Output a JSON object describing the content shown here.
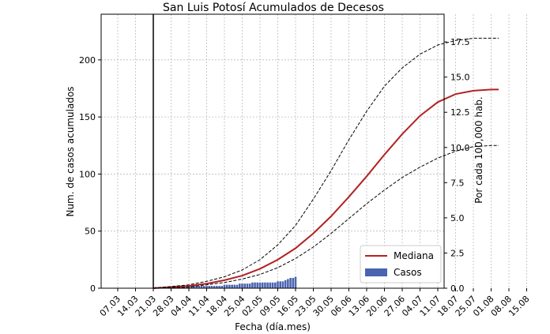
{
  "chart_data": {
    "type": "line",
    "title": "San Luis Potosí Acumulados de Decesos",
    "xlabel": "Fecha (día.mes)",
    "ylabel": "Num. de casos acumulados",
    "y2label": "Por cada 100,000 hab.",
    "ylim": [
      0,
      240
    ],
    "y_ticks": [
      0,
      50,
      100,
      150,
      200
    ],
    "y2lim": [
      0,
      19.47
    ],
    "y2_ticks": [
      "0.0",
      "2.5",
      "5.0",
      "7.5",
      "10.0",
      "12.5",
      "15.0",
      "17.5"
    ],
    "x_tick_labels": [
      "07.03",
      "14.03",
      "21.03",
      "28.03",
      "04.04",
      "11.04",
      "18.04",
      "25.04",
      "02.05",
      "09.05",
      "16.05",
      "23.05",
      "30.05",
      "06.06",
      "13.06",
      "20.06",
      "27.06",
      "04.07",
      "11.07",
      "18.07",
      "25.07",
      "01.08",
      "08.08",
      "15.08"
    ],
    "x_unit": "days since 07.03",
    "vline_day": 14,
    "grid": true,
    "legend_position": "lower-right",
    "series": [
      {
        "name": "Mediana",
        "kind": "line",
        "color": "#b22222",
        "x": [
          14,
          28,
          35,
          42,
          49,
          56,
          63,
          70,
          77,
          84,
          91,
          98,
          105,
          112,
          119,
          126,
          133,
          140,
          147,
          150
        ],
        "y": [
          0,
          2,
          4,
          7,
          11,
          17,
          25,
          35,
          48,
          63,
          80,
          98,
          117,
          135,
          151,
          163,
          170,
          173,
          174,
          174
        ]
      },
      {
        "name": "Upper bound",
        "kind": "dashed",
        "color": "#000000",
        "x": [
          14,
          28,
          35,
          42,
          49,
          56,
          63,
          70,
          77,
          84,
          91,
          98,
          105,
          112,
          119,
          126,
          133,
          140,
          147,
          150
        ],
        "y": [
          0,
          3,
          6,
          10,
          16,
          25,
          38,
          55,
          78,
          103,
          130,
          155,
          177,
          193,
          205,
          213,
          217,
          219,
          219,
          219
        ]
      },
      {
        "name": "Lower bound",
        "kind": "dashed",
        "color": "#000000",
        "x": [
          14,
          28,
          35,
          42,
          49,
          56,
          63,
          70,
          77,
          84,
          91,
          98,
          105,
          112,
          119,
          126,
          133,
          140,
          147,
          150
        ],
        "y": [
          0,
          1,
          3,
          5,
          8,
          12,
          18,
          26,
          36,
          48,
          61,
          74,
          86,
          97,
          106,
          114,
          120,
          124,
          125,
          125
        ]
      },
      {
        "name": "Casos",
        "kind": "bar",
        "color": "#4a64b0",
        "x": [
          15,
          16,
          17,
          18,
          19,
          20,
          21,
          22,
          23,
          24,
          25,
          26,
          27,
          28,
          29,
          30,
          31,
          32,
          33,
          34,
          35,
          36,
          37,
          38,
          39,
          40,
          41,
          42,
          43,
          44,
          45,
          46,
          47,
          48,
          49,
          50,
          51,
          52,
          53,
          54,
          55,
          56,
          57,
          58,
          59,
          60,
          61,
          62,
          63,
          64,
          65,
          66,
          67,
          68,
          69,
          70
        ],
        "y": [
          1,
          1,
          1,
          1,
          1,
          1,
          1,
          2,
          2,
          2,
          2,
          2,
          2,
          2,
          2,
          2,
          2,
          2,
          2,
          2,
          2,
          2,
          2,
          2,
          2,
          2,
          2,
          3,
          3,
          3,
          3,
          3,
          3,
          4,
          4,
          4,
          4,
          4,
          5,
          5,
          5,
          5,
          5,
          5,
          5,
          5,
          5,
          5,
          6,
          6,
          6,
          7,
          8,
          9,
          9,
          10
        ]
      }
    ],
    "legend": [
      "Mediana",
      "Casos"
    ]
  }
}
